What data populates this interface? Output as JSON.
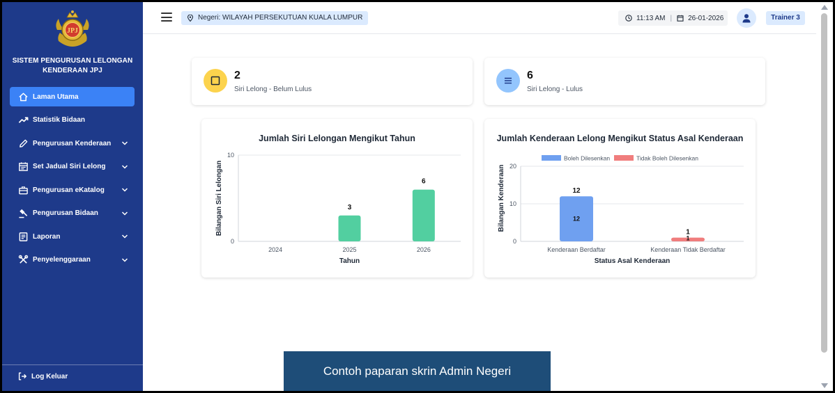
{
  "sidebar": {
    "brand": "SISTEM PENGURUSAN LELONGAN KENDERAAN JPJ",
    "logo_text": "JPJ",
    "items": [
      {
        "label": "Laman Utama",
        "icon": "home-icon",
        "active": true,
        "expandable": false
      },
      {
        "label": "Statistik Bidaan",
        "icon": "trending-up-icon",
        "active": false,
        "expandable": false
      },
      {
        "label": "Pengurusan Kenderaan",
        "icon": "pencil-icon",
        "active": false,
        "expandable": true
      },
      {
        "label": "Set Jadual Siri Lelong",
        "icon": "calendar-icon",
        "active": false,
        "expandable": true
      },
      {
        "label": "Pengurusan eKatalog",
        "icon": "briefcase-icon",
        "active": false,
        "expandable": true
      },
      {
        "label": "Pengurusan Bidaan",
        "icon": "gavel-icon",
        "active": false,
        "expandable": true
      },
      {
        "label": "Laporan",
        "icon": "report-icon",
        "active": false,
        "expandable": true
      },
      {
        "label": "Penyelenggaraan",
        "icon": "tools-icon",
        "active": false,
        "expandable": true
      }
    ],
    "logout": "Log Keluar"
  },
  "header": {
    "state": "Negeri: WILAYAH PERSEKUTUAN KUALA LUMPUR",
    "time": "11:13 AM",
    "date": "26-01-2026",
    "user": "Trainer 3"
  },
  "stats": [
    {
      "value": "2",
      "label": "Siri Lelong - Belum Lulus",
      "color": "#fcd34d",
      "icon": "square-icon"
    },
    {
      "value": "6",
      "label": "Siri Lelong - Lulus",
      "color": "#93c5fd",
      "icon": "list-icon"
    }
  ],
  "chart_data": [
    {
      "type": "bar",
      "title": "Jumlah Siri Lelongan Mengikut Tahun",
      "xlabel": "Tahun",
      "ylabel": "Bilangan Siri Lelongan",
      "categories": [
        "2024",
        "2025",
        "2026"
      ],
      "values": [
        0,
        3,
        6
      ],
      "data_labels": [
        "",
        "3",
        "6"
      ],
      "ylim": [
        0,
        10
      ],
      "yticks": [
        "0",
        "10"
      ],
      "color": "#52cfa0",
      "grid": true,
      "legend": "none"
    },
    {
      "type": "bar",
      "title": "Jumlah Kenderaan Lelong Mengikut Status Asal Kenderaan",
      "xlabel": "Status Asal Kenderaan",
      "ylabel": "Bilangan Kenderaan",
      "categories": [
        "Kenderaan Berdaftar",
        "Kenderaan Tidak Berdaftar"
      ],
      "series": [
        {
          "name": "Boleh Dilesenkan",
          "values": [
            12,
            0
          ],
          "color": "#6fa0f0"
        },
        {
          "name": "Tidak Boleh Dilesenkan",
          "values": [
            0,
            1
          ],
          "color": "#f07d7d"
        }
      ],
      "totals": [
        "12",
        "1"
      ],
      "inner_labels": [
        "12",
        "1"
      ],
      "stacked": true,
      "ylim": [
        0,
        20
      ],
      "yticks": [
        "0",
        "10",
        "20"
      ],
      "grid": true,
      "legend": "top"
    }
  ],
  "caption": "Contoh paparan skrin Admin Negeri"
}
